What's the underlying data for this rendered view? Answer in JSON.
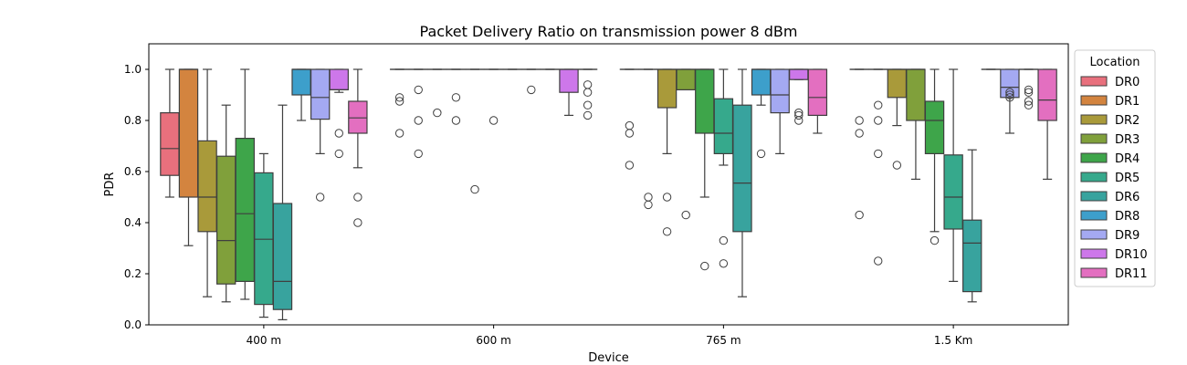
{
  "chart_data": {
    "type": "box",
    "title": "Packet Delivery Ratio on transmission power 8 dBm",
    "xlabel": "Device",
    "ylabel": "PDR",
    "ylim": [
      0,
      1.1
    ],
    "yticks": [
      "0.0",
      "0.2",
      "0.4",
      "0.6",
      "0.8",
      "1.0"
    ],
    "categories": [
      "400 m",
      "600 m",
      "765 m",
      "1.5 Km"
    ],
    "legend": {
      "title": "Location",
      "placement": "right, outside plot",
      "entries": [
        "DR0",
        "DR1",
        "DR2",
        "DR3",
        "DR4",
        "DR5",
        "DR6",
        "DR8",
        "DR9",
        "DR10",
        "DR11"
      ]
    },
    "colors": {
      "DR0": "#e8707d",
      "DR1": "#d3843f",
      "DR2": "#a99a3a",
      "DR3": "#80a03b",
      "DR4": "#3ea54a",
      "DR5": "#36a98c",
      "DR6": "#38a39e",
      "DR8": "#3d9fcb",
      "DR9": "#a4a9f2",
      "DR10": "#cd77ea",
      "DR11": "#e36fc0"
    },
    "series": [
      {
        "name": "DR0",
        "boxes": [
          {
            "category": "400 m",
            "wlo": 0.5,
            "q1": 0.585,
            "med": 0.69,
            "q3": 0.83,
            "whi": 1.0,
            "outliers": []
          },
          {
            "category": "600 m",
            "wlo": 1.0,
            "q1": 1.0,
            "med": 1.0,
            "q3": 1.0,
            "whi": 1.0,
            "outliers": [
              0.75,
              0.875,
              0.89
            ]
          },
          {
            "category": "765 m",
            "wlo": 1.0,
            "q1": 1.0,
            "med": 1.0,
            "q3": 1.0,
            "whi": 1.0,
            "outliers": [
              0.625,
              0.75,
              0.78
            ]
          },
          {
            "category": "1.5 Km",
            "wlo": 1.0,
            "q1": 1.0,
            "med": 1.0,
            "q3": 1.0,
            "whi": 1.0,
            "outliers": [
              0.43,
              0.75,
              0.8
            ]
          }
        ]
      },
      {
        "name": "DR1",
        "boxes": [
          {
            "category": "400 m",
            "wlo": 0.31,
            "q1": 0.5,
            "med": 1.0,
            "q3": 1.0,
            "whi": 1.0,
            "outliers": []
          },
          {
            "category": "600 m",
            "wlo": 1.0,
            "q1": 1.0,
            "med": 1.0,
            "q3": 1.0,
            "whi": 1.0,
            "outliers": [
              0.67,
              0.8,
              0.92
            ]
          },
          {
            "category": "765 m",
            "wlo": 1.0,
            "q1": 1.0,
            "med": 1.0,
            "q3": 1.0,
            "whi": 1.0,
            "outliers": [
              0.47,
              0.5
            ]
          },
          {
            "category": "1.5 Km",
            "wlo": 1.0,
            "q1": 1.0,
            "med": 1.0,
            "q3": 1.0,
            "whi": 1.0,
            "outliers": [
              0.25,
              0.67,
              0.8,
              0.86
            ]
          }
        ]
      },
      {
        "name": "DR2",
        "boxes": [
          {
            "category": "400 m",
            "wlo": 0.11,
            "q1": 0.365,
            "med": 0.5,
            "q3": 0.72,
            "whi": 1.0,
            "outliers": []
          },
          {
            "category": "600 m",
            "wlo": 1.0,
            "q1": 1.0,
            "med": 1.0,
            "q3": 1.0,
            "whi": 1.0,
            "outliers": [
              0.83
            ]
          },
          {
            "category": "765 m",
            "wlo": 0.67,
            "q1": 0.85,
            "med": 1.0,
            "q3": 1.0,
            "whi": 1.0,
            "outliers": [
              0.365,
              0.5
            ]
          },
          {
            "category": "1.5 Km",
            "wlo": 0.78,
            "q1": 0.89,
            "med": 1.0,
            "q3": 1.0,
            "whi": 1.0,
            "outliers": [
              0.625
            ]
          }
        ]
      },
      {
        "name": "DR3",
        "boxes": [
          {
            "category": "400 m",
            "wlo": 0.09,
            "q1": 0.16,
            "med": 0.33,
            "q3": 0.66,
            "whi": 0.86,
            "outliers": []
          },
          {
            "category": "600 m",
            "wlo": 1.0,
            "q1": 1.0,
            "med": 1.0,
            "q3": 1.0,
            "whi": 1.0,
            "outliers": [
              0.8,
              0.89
            ]
          },
          {
            "category": "765 m",
            "wlo": 0.92,
            "q1": 0.92,
            "med": 1.0,
            "q3": 1.0,
            "whi": 1.0,
            "outliers": [
              0.43
            ]
          },
          {
            "category": "1.5 Km",
            "wlo": 0.57,
            "q1": 0.8,
            "med": 1.0,
            "q3": 1.0,
            "whi": 1.0,
            "outliers": []
          }
        ]
      },
      {
        "name": "DR4",
        "boxes": [
          {
            "category": "400 m",
            "wlo": 0.1,
            "q1": 0.17,
            "med": 0.435,
            "q3": 0.73,
            "whi": 1.0,
            "outliers": []
          },
          {
            "category": "600 m",
            "wlo": 1.0,
            "q1": 1.0,
            "med": 1.0,
            "q3": 1.0,
            "whi": 1.0,
            "outliers": [
              0.53
            ]
          },
          {
            "category": "765 m",
            "wlo": 0.5,
            "q1": 0.75,
            "med": 1.0,
            "q3": 1.0,
            "whi": 1.0,
            "outliers": [
              0.23
            ]
          },
          {
            "category": "1.5 Km",
            "wlo": 0.365,
            "q1": 0.67,
            "med": 0.8,
            "q3": 0.875,
            "whi": 1.0,
            "outliers": [
              0.33
            ]
          }
        ]
      },
      {
        "name": "DR5",
        "boxes": [
          {
            "category": "400 m",
            "wlo": 0.03,
            "q1": 0.08,
            "med": 0.335,
            "q3": 0.595,
            "whi": 0.67,
            "outliers": []
          },
          {
            "category": "600 m",
            "wlo": 1.0,
            "q1": 1.0,
            "med": 1.0,
            "q3": 1.0,
            "whi": 1.0,
            "outliers": [
              0.8
            ]
          },
          {
            "category": "765 m",
            "wlo": 0.625,
            "q1": 0.67,
            "med": 0.75,
            "q3": 0.885,
            "whi": 1.0,
            "outliers": [
              0.24,
              0.33
            ]
          },
          {
            "category": "1.5 Km",
            "wlo": 0.17,
            "q1": 0.375,
            "med": 0.5,
            "q3": 0.665,
            "whi": 1.0,
            "outliers": []
          }
        ]
      },
      {
        "name": "DR6",
        "boxes": [
          {
            "category": "400 m",
            "wlo": 0.02,
            "q1": 0.06,
            "med": 0.17,
            "q3": 0.475,
            "whi": 0.86,
            "outliers": []
          },
          {
            "category": "600 m",
            "wlo": 1.0,
            "q1": 1.0,
            "med": 1.0,
            "q3": 1.0,
            "whi": 1.0,
            "outliers": []
          },
          {
            "category": "765 m",
            "wlo": 0.11,
            "q1": 0.365,
            "med": 0.555,
            "q3": 0.86,
            "whi": 1.0,
            "outliers": []
          },
          {
            "category": "1.5 Km",
            "wlo": 0.09,
            "q1": 0.13,
            "med": 0.32,
            "q3": 0.41,
            "whi": 0.685,
            "outliers": []
          }
        ]
      },
      {
        "name": "DR8",
        "boxes": [
          {
            "category": "400 m",
            "wlo": 0.8,
            "q1": 0.9,
            "med": 1.0,
            "q3": 1.0,
            "whi": 1.0,
            "outliers": []
          },
          {
            "category": "600 m",
            "wlo": 1.0,
            "q1": 1.0,
            "med": 1.0,
            "q3": 1.0,
            "whi": 1.0,
            "outliers": [
              0.92
            ]
          },
          {
            "category": "765 m",
            "wlo": 0.86,
            "q1": 0.9,
            "med": 1.0,
            "q3": 1.0,
            "whi": 1.0,
            "outliers": [
              0.67
            ]
          },
          {
            "category": "1.5 Km",
            "wlo": 1.0,
            "q1": 1.0,
            "med": 1.0,
            "q3": 1.0,
            "whi": 1.0,
            "outliers": []
          }
        ]
      },
      {
        "name": "DR9",
        "boxes": [
          {
            "category": "400 m",
            "wlo": 0.67,
            "q1": 0.805,
            "med": 0.89,
            "q3": 1.0,
            "whi": 1.0,
            "outliers": [
              0.5
            ]
          },
          {
            "category": "600 m",
            "wlo": 1.0,
            "q1": 1.0,
            "med": 1.0,
            "q3": 1.0,
            "whi": 1.0,
            "outliers": []
          },
          {
            "category": "765 m",
            "wlo": 0.67,
            "q1": 0.83,
            "med": 0.9,
            "q3": 1.0,
            "whi": 1.0,
            "outliers": []
          },
          {
            "category": "1.5 Km",
            "wlo": 0.75,
            "q1": 0.89,
            "med": 0.93,
            "q3": 1.0,
            "whi": 1.0,
            "outliers": [
              0.89,
              0.9,
              0.91
            ]
          }
        ]
      },
      {
        "name": "DR10",
        "boxes": [
          {
            "category": "400 m",
            "wlo": 0.91,
            "q1": 0.92,
            "med": 0.92,
            "q3": 1.0,
            "whi": 1.0,
            "outliers": [
              0.67,
              0.75
            ]
          },
          {
            "category": "600 m",
            "wlo": 0.82,
            "q1": 0.91,
            "med": 1.0,
            "q3": 1.0,
            "whi": 1.0,
            "outliers": []
          },
          {
            "category": "765 m",
            "wlo": 0.96,
            "q1": 0.96,
            "med": 1.0,
            "q3": 1.0,
            "whi": 1.0,
            "outliers": [
              0.8,
              0.82,
              0.83
            ]
          },
          {
            "category": "1.5 Km",
            "wlo": 1.0,
            "q1": 1.0,
            "med": 1.0,
            "q3": 1.0,
            "whi": 1.0,
            "outliers": [
              0.86,
              0.875,
              0.91,
              0.92
            ]
          }
        ]
      },
      {
        "name": "DR11",
        "boxes": [
          {
            "category": "400 m",
            "wlo": 0.615,
            "q1": 0.75,
            "med": 0.81,
            "q3": 0.875,
            "whi": 1.0,
            "outliers": [
              0.4,
              0.5
            ]
          },
          {
            "category": "600 m",
            "wlo": 1.0,
            "q1": 1.0,
            "med": 1.0,
            "q3": 1.0,
            "whi": 1.0,
            "outliers": [
              0.82,
              0.86,
              0.91,
              0.94
            ]
          },
          {
            "category": "765 m",
            "wlo": 0.75,
            "q1": 0.82,
            "med": 0.89,
            "q3": 1.0,
            "whi": 1.0,
            "outliers": []
          },
          {
            "category": "1.5 Km",
            "wlo": 0.57,
            "q1": 0.8,
            "med": 0.88,
            "q3": 1.0,
            "whi": 1.0,
            "outliers": []
          }
        ]
      }
    ]
  }
}
